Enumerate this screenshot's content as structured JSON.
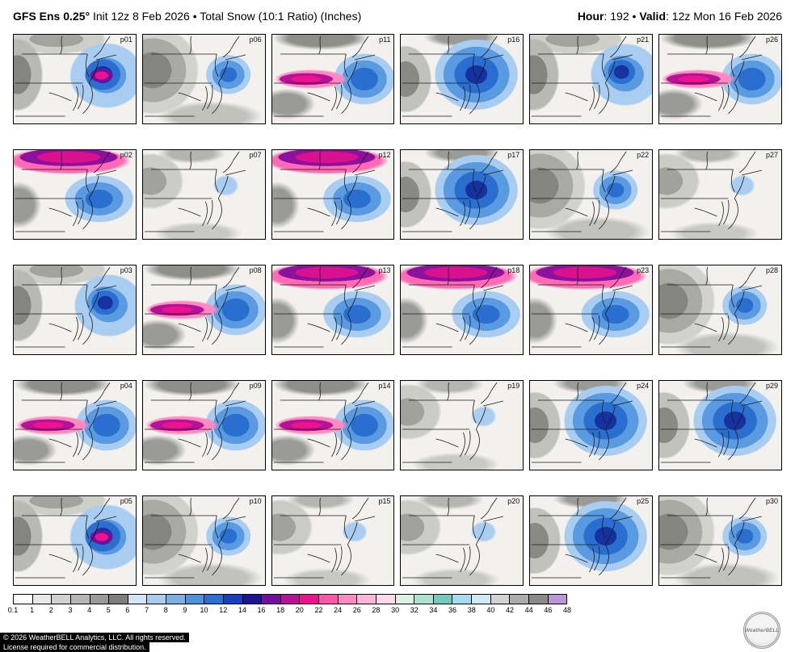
{
  "header": {
    "left_bold": "GFS Ens 0.25°",
    "left_rest": " Init 12z 8 Feb 2026 • Total Snow (10:1 Ratio) (Inches)",
    "hour_label": "Hour",
    "hour_value": ": 192 • ",
    "valid_label": "Valid",
    "valid_value": ": 12z Mon 16 Feb 2026"
  },
  "panels": [
    {
      "id": "p01",
      "pattern": "G"
    },
    {
      "id": "p06",
      "pattern": "F"
    },
    {
      "id": "p11",
      "pattern": "C"
    },
    {
      "id": "p16",
      "pattern": "E"
    },
    {
      "id": "p21",
      "pattern": "A"
    },
    {
      "id": "p26",
      "pattern": "C"
    },
    {
      "id": "p02",
      "pattern": "D"
    },
    {
      "id": "p07",
      "pattern": "B"
    },
    {
      "id": "p12",
      "pattern": "D"
    },
    {
      "id": "p17",
      "pattern": "E"
    },
    {
      "id": "p22",
      "pattern": "F"
    },
    {
      "id": "p27",
      "pattern": "B"
    },
    {
      "id": "p03",
      "pattern": "A"
    },
    {
      "id": "p08",
      "pattern": "C"
    },
    {
      "id": "p13",
      "pattern": "D"
    },
    {
      "id": "p18",
      "pattern": "D"
    },
    {
      "id": "p23",
      "pattern": "D"
    },
    {
      "id": "p28",
      "pattern": "F"
    },
    {
      "id": "p04",
      "pattern": "C"
    },
    {
      "id": "p09",
      "pattern": "C"
    },
    {
      "id": "p14",
      "pattern": "C"
    },
    {
      "id": "p19",
      "pattern": "B"
    },
    {
      "id": "p24",
      "pattern": "E"
    },
    {
      "id": "p29",
      "pattern": "E"
    },
    {
      "id": "p05",
      "pattern": "G"
    },
    {
      "id": "p10",
      "pattern": "F"
    },
    {
      "id": "p15",
      "pattern": "B"
    },
    {
      "id": "p20",
      "pattern": "B"
    },
    {
      "id": "p25",
      "pattern": "E"
    },
    {
      "id": "p30",
      "pattern": "F"
    }
  ],
  "colorbar": {
    "ticks": [
      "0.1",
      "1",
      "2",
      "3",
      "4",
      "5",
      "6",
      "7",
      "8",
      "9",
      "10",
      "12",
      "14",
      "16",
      "18",
      "20",
      "22",
      "24",
      "26",
      "28",
      "30",
      "32",
      "34",
      "36",
      "38",
      "40",
      "42",
      "44",
      "46",
      "48"
    ],
    "colors": [
      "#fbfbfb",
      "#e8e8e6",
      "#d0d0ce",
      "#b5b5b2",
      "#9a9a96",
      "#7e7e7a",
      "#d2e4f5",
      "#a9cdef",
      "#7cb0e4",
      "#4e90d9",
      "#2b6fd0",
      "#1a3ec0",
      "#1c1490",
      "#70109d",
      "#b51297",
      "#ee128f",
      "#ff55aa",
      "#ff8ac1",
      "#ffb5d7",
      "#ffd9e9",
      "#ddf2e4",
      "#abe2cf",
      "#74cabe",
      "#a2dcee",
      "#cdeaf6",
      "#d2d2d0",
      "#ababa8",
      "#8a8a88",
      "#b996d8"
    ]
  },
  "footer": {
    "line1": "© 2026 WeatherBELL Analytics, LLC. All rights reserved.",
    "line2": "License required for commercial distribution."
  },
  "logo": {
    "text": "WeatherBELL"
  }
}
